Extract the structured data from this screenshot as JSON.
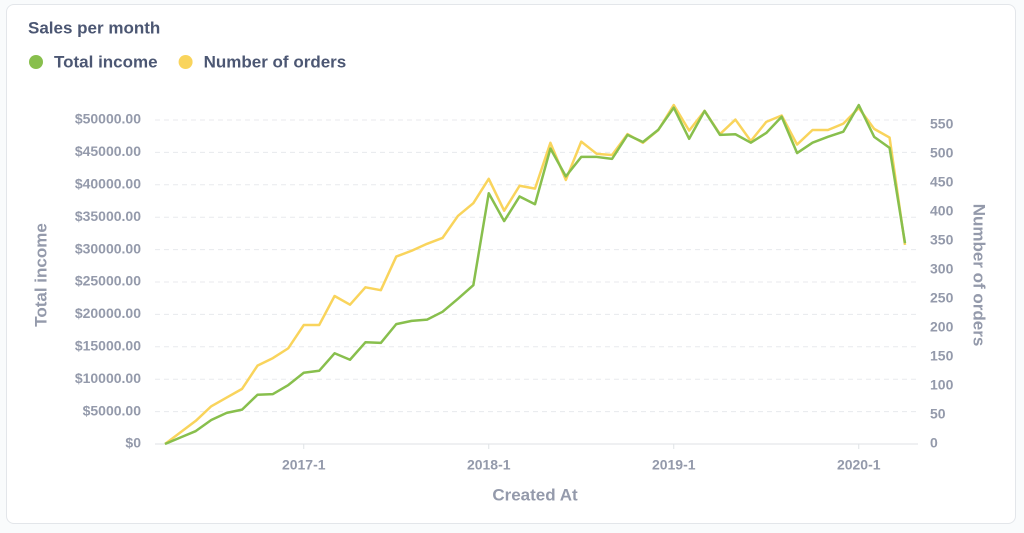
{
  "chart_data": {
    "type": "line",
    "title": "Sales per month",
    "x_label": "Created At",
    "y_label": "Total income",
    "y2_label": "Number of orders",
    "categories": [
      null,
      null,
      null,
      null,
      null,
      null,
      null,
      null,
      null,
      "2017-1",
      null,
      null,
      null,
      null,
      null,
      null,
      null,
      null,
      null,
      null,
      null,
      "2018-1",
      null,
      null,
      null,
      null,
      null,
      null,
      null,
      null,
      null,
      null,
      null,
      "2019-1",
      null,
      null,
      null,
      null,
      null,
      null,
      null,
      null,
      null,
      null,
      null,
      "2020-1",
      null,
      null,
      null
    ],
    "series": [
      {
        "name": "Total income",
        "color": "#88bf4d",
        "values": [
          0,
          1000,
          2000,
          3700,
          4800,
          5300,
          7600,
          7700,
          9100,
          11000,
          11300,
          14000,
          13000,
          15700,
          15600,
          18500,
          19000,
          19200,
          20400,
          22400,
          24500,
          38700,
          34400,
          38200,
          37000,
          45600,
          41300,
          44300,
          44300,
          44000,
          47700,
          46600,
          48500,
          51900,
          47100,
          51400,
          47700,
          47800,
          46500,
          48000,
          50500,
          44900,
          46500,
          47400,
          48200,
          52300,
          47400,
          45700,
          31000
        ]
      },
      {
        "name": "Number of orders",
        "color": "#f9d45c",
        "axis": "y2",
        "values": [
          0,
          20,
          40,
          65,
          80,
          95,
          135,
          148,
          165,
          205,
          205,
          255,
          240,
          270,
          265,
          323,
          333,
          345,
          355,
          393,
          415,
          457,
          402,
          445,
          440,
          519,
          455,
          521,
          500,
          498,
          534,
          519,
          541,
          584,
          540,
          574,
          534,
          559,
          522,
          555,
          566,
          516,
          541,
          541,
          552,
          579,
          543,
          528,
          343
        ]
      }
    ],
    "ylim": [
      0,
      50000
    ],
    "yticks": [
      {
        "value": 0,
        "label": "$0"
      },
      {
        "value": 5000,
        "label": "$5000.00"
      },
      {
        "value": 10000,
        "label": "$10000.00"
      },
      {
        "value": 15000,
        "label": "$15000.00"
      },
      {
        "value": 20000,
        "label": "$20000.00"
      },
      {
        "value": 25000,
        "label": "$25000.00"
      },
      {
        "value": 30000,
        "label": "$30000.00"
      },
      {
        "value": 35000,
        "label": "$35000.00"
      },
      {
        "value": 40000,
        "label": "$40000.00"
      },
      {
        "value": 45000,
        "label": "$45000.00"
      },
      {
        "value": 50000,
        "label": "$50000.00"
      }
    ],
    "y2lim": [
      0,
      560
    ],
    "y2ticks": [
      0,
      50,
      100,
      150,
      200,
      250,
      300,
      350,
      400,
      450,
      500,
      550
    ],
    "grid": true
  }
}
